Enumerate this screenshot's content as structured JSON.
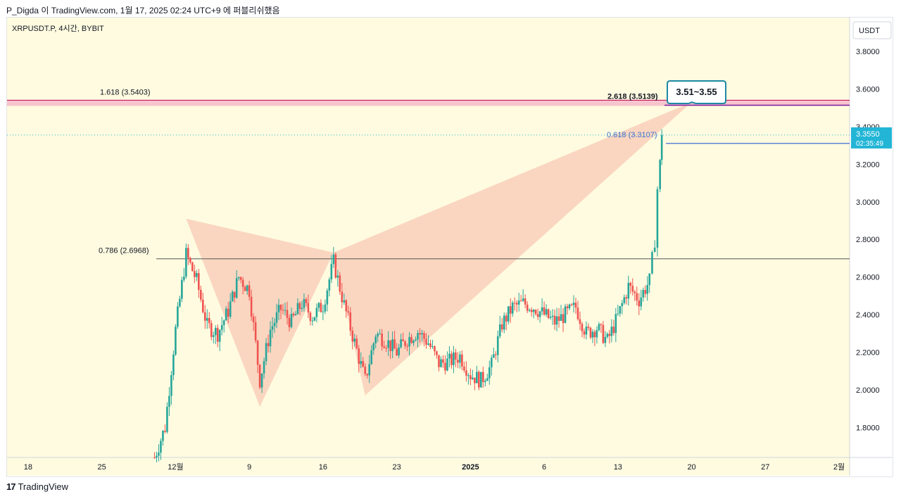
{
  "header": {
    "publish_line": "P_Digda 이 TradingView.com, 1월 17, 2025 02:24 UTC+9 에 퍼블리쉬했음"
  },
  "footer": {
    "logo_mark": "17",
    "brand": "TradingView"
  },
  "colors": {
    "background": "#fffbe0",
    "up_candle": "#26a69a",
    "down_candle": "#ef5350",
    "pattern_fill": "#f8c9b5",
    "resistance_band": "#f7c5ce",
    "price_badge": "#22b5d6",
    "callout_border": "#1e88a5"
  },
  "chart_data": {
    "type": "candlestick",
    "symbol_label": "XRPUSDT.P, 4시간, BYBIT",
    "currency_label": "USDT",
    "y_ticks": [
      "3.8000",
      "3.6000",
      "3.4000",
      "3.2000",
      "3.0000",
      "2.8000",
      "2.6000",
      "2.4000",
      "2.2000",
      "2.0000",
      "1.8000"
    ],
    "y_range": [
      1.64,
      3.98
    ],
    "x_ticks": [
      "18",
      "25",
      "12월",
      "9",
      "16",
      "23",
      "2025",
      "6",
      "13",
      "20",
      "27",
      "2월"
    ],
    "x_date_range": [
      "2024-11-16",
      "2025-02-04"
    ],
    "current_price": {
      "value": "3.3550",
      "countdown": "02:35:49"
    },
    "callout": "3.51~3.55",
    "fib_levels": [
      {
        "label": "1.618 (3.5403)",
        "value": 3.5403
      },
      {
        "label": "2.618 (3.5139)",
        "value": 3.5139
      },
      {
        "label": "0.618 (3.3107)",
        "value": 3.3107
      },
      {
        "label": "0.786 (2.6968)",
        "value": 2.6968
      }
    ],
    "harmonic_pattern": {
      "points": [
        {
          "date": "2024-12-03",
          "price": 2.91
        },
        {
          "date": "2024-12-10",
          "price": 1.91
        },
        {
          "date": "2024-12-17",
          "price": 2.73
        },
        {
          "date": "2024-12-20",
          "price": 1.97
        },
        {
          "date": "2025-01-20",
          "price": 3.53
        }
      ]
    },
    "price_path": [
      {
        "date": "2024-11-30",
        "price": 1.64
      },
      {
        "date": "2024-12-01",
        "price": 1.8
      },
      {
        "date": "2024-12-02",
        "price": 2.32
      },
      {
        "date": "2024-12-03",
        "price": 2.72
      },
      {
        "date": "2024-12-04",
        "price": 2.58
      },
      {
        "date": "2024-12-05",
        "price": 2.34
      },
      {
        "date": "2024-12-06",
        "price": 2.3
      },
      {
        "date": "2024-12-07",
        "price": 2.42
      },
      {
        "date": "2024-12-08",
        "price": 2.6
      },
      {
        "date": "2024-12-09",
        "price": 2.53
      },
      {
        "date": "2024-12-10",
        "price": 2.05
      },
      {
        "date": "2024-12-11",
        "price": 2.32
      },
      {
        "date": "2024-12-12",
        "price": 2.43
      },
      {
        "date": "2024-12-13",
        "price": 2.36
      },
      {
        "date": "2024-12-14",
        "price": 2.46
      },
      {
        "date": "2024-12-15",
        "price": 2.39
      },
      {
        "date": "2024-12-16",
        "price": 2.45
      },
      {
        "date": "2024-12-17",
        "price": 2.68
      },
      {
        "date": "2024-12-18",
        "price": 2.45
      },
      {
        "date": "2024-12-19",
        "price": 2.25
      },
      {
        "date": "2024-12-20",
        "price": 2.05
      },
      {
        "date": "2024-12-21",
        "price": 2.3
      },
      {
        "date": "2024-12-22",
        "price": 2.26
      },
      {
        "date": "2024-12-23",
        "price": 2.2
      },
      {
        "date": "2024-12-24",
        "price": 2.27
      },
      {
        "date": "2024-12-25",
        "price": 2.31
      },
      {
        "date": "2024-12-26",
        "price": 2.25
      },
      {
        "date": "2024-12-27",
        "price": 2.14
      },
      {
        "date": "2024-12-28",
        "price": 2.15
      },
      {
        "date": "2024-12-29",
        "price": 2.18
      },
      {
        "date": "2024-12-30",
        "price": 2.08
      },
      {
        "date": "2024-12-31",
        "price": 2.05
      },
      {
        "date": "2025-01-01",
        "price": 2.13
      },
      {
        "date": "2025-01-02",
        "price": 2.35
      },
      {
        "date": "2025-01-03",
        "price": 2.44
      },
      {
        "date": "2025-01-04",
        "price": 2.46
      },
      {
        "date": "2025-01-05",
        "price": 2.44
      },
      {
        "date": "2025-01-06",
        "price": 2.4
      },
      {
        "date": "2025-01-07",
        "price": 2.36
      },
      {
        "date": "2025-01-08",
        "price": 2.4
      },
      {
        "date": "2025-01-09",
        "price": 2.44
      },
      {
        "date": "2025-01-10",
        "price": 2.3
      },
      {
        "date": "2025-01-11",
        "price": 2.33
      },
      {
        "date": "2025-01-12",
        "price": 2.26
      },
      {
        "date": "2025-01-13",
        "price": 2.39
      },
      {
        "date": "2025-01-14",
        "price": 2.55
      },
      {
        "date": "2025-01-15",
        "price": 2.48
      },
      {
        "date": "2025-01-16",
        "price": 2.58
      },
      {
        "date": "2025-01-16T12",
        "price": 2.8
      },
      {
        "date": "2025-01-16T18",
        "price": 3.07
      },
      {
        "date": "2025-01-17",
        "price": 3.2
      },
      {
        "date": "2025-01-17T04",
        "price": 3.355
      }
    ]
  }
}
